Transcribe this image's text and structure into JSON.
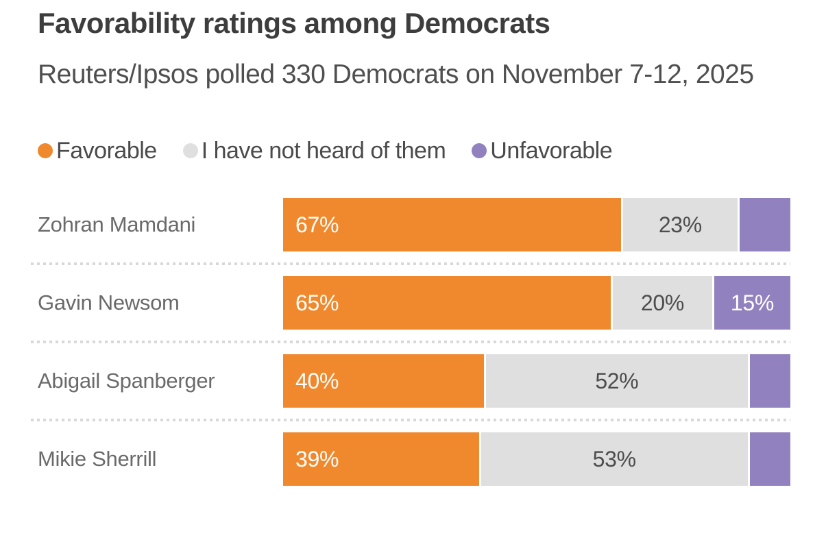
{
  "title": "Favorability ratings among Democrats",
  "subtitle": "Reuters/Ipsos polled 330 Democrats on November 7-12, 2025",
  "colors": {
    "favorable": "#F0892D",
    "not_heard": "#E0DFDF",
    "unfavorable": "#9181BE",
    "title_text": "#3D3D3D",
    "subtitle_text": "#4F4F4F",
    "row_label_text": "#6A6A6A",
    "bar_label_light": "#FFFFFF",
    "bar_label_dark": "#4D4D4D",
    "separator": "#D8D8D8"
  },
  "legend": [
    {
      "series": "favorable",
      "label": "Favorable"
    },
    {
      "series": "not_heard",
      "label": "I have not heard of them"
    },
    {
      "series": "unfavorable",
      "label": "Unfavorable"
    }
  ],
  "chart_data": {
    "type": "bar",
    "orientation": "horizontal",
    "stacked": true,
    "title": "Favorability ratings among Democrats",
    "subtitle": "Reuters/Ipsos polled 330 Democrats on November 7-12, 2025",
    "categories": [
      "Zohran Mamdani",
      "Gavin Newsom",
      "Abigail Spanberger",
      "Mikie Sherrill"
    ],
    "series": [
      {
        "name": "Favorable",
        "color_key": "favorable",
        "values": [
          67,
          65,
          40,
          39
        ],
        "labels": [
          "67%",
          "65%",
          "40%",
          "39%"
        ]
      },
      {
        "name": "I have not heard of them",
        "color_key": "not_heard",
        "values": [
          23,
          20,
          52,
          53
        ],
        "labels": [
          "23%",
          "20%",
          "52%",
          "53%"
        ]
      },
      {
        "name": "Unfavorable",
        "color_key": "unfavorable",
        "values": [
          10,
          15,
          8,
          8
        ],
        "labels": [
          "",
          "15%",
          "",
          ""
        ]
      }
    ],
    "xlim": [
      0,
      100
    ],
    "grid": false,
    "legend_position": "top"
  }
}
